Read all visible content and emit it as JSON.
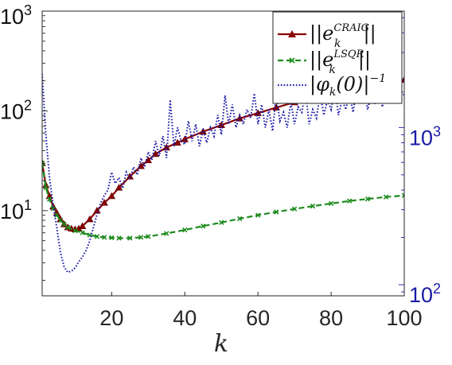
{
  "chart_data": {
    "type": "line",
    "title": "",
    "x": {
      "label": "k",
      "range": [
        1,
        100
      ],
      "ticks": [
        20,
        40,
        60,
        80,
        100
      ]
    },
    "y_left": {
      "scale": "log",
      "range": [
        1.4,
        1000
      ],
      "ticks": [
        {
          "value": 10,
          "mantissa": "10",
          "exp": "1"
        },
        {
          "value": 100,
          "mantissa": "10",
          "exp": "2"
        },
        {
          "value": 1000,
          "mantissa": "10",
          "exp": "3"
        }
      ]
    },
    "y_right": {
      "scale": "log",
      "range": [
        85,
        5500
      ],
      "color": "#1a1aa8",
      "ticks": [
        {
          "value": 100,
          "mantissa": "10",
          "exp": "2"
        },
        {
          "value": 1000,
          "mantissa": "10",
          "exp": "3"
        }
      ]
    },
    "grid": false,
    "legend_position": "top-right",
    "series": [
      {
        "id": "craig",
        "legend": {
          "prefix": "||e",
          "sub": "k",
          "sup": "CRAIG",
          "suffix": "||"
        },
        "axis": "left",
        "color": "#8b0000",
        "style": "solid",
        "marker": "triangle",
        "x": [
          1,
          2,
          3,
          4,
          5,
          6,
          7,
          8,
          9,
          10,
          11,
          12,
          14,
          16,
          18,
          20,
          22,
          25,
          28,
          30,
          32,
          35,
          38,
          40,
          45,
          50,
          55,
          60,
          65,
          70,
          75,
          80,
          85,
          90,
          95,
          100
        ],
        "y": [
          30,
          18,
          14,
          11,
          9.5,
          8.2,
          7.3,
          6.8,
          6.6,
          6.5,
          6.6,
          7.0,
          8.2,
          10,
          12,
          14,
          17,
          22,
          28,
          32,
          37,
          43,
          48,
          52,
          62,
          72,
          84,
          95,
          108,
          122,
          136,
          150,
          165,
          180,
          195,
          205
        ]
      },
      {
        "id": "lsqr",
        "legend": {
          "prefix": "||e",
          "sub": "k",
          "sup": "LSQR",
          "suffix": "||"
        },
        "axis": "left",
        "color": "#1e8c1e",
        "style": "dashed",
        "marker": "x",
        "x": [
          1,
          2,
          3,
          4,
          5,
          6,
          7,
          8,
          10,
          12,
          14,
          16,
          18,
          20,
          22,
          25,
          28,
          30,
          35,
          40,
          45,
          50,
          55,
          60,
          65,
          70,
          75,
          80,
          85,
          90,
          95,
          100
        ],
        "y": [
          30,
          17,
          13,
          10.5,
          9,
          8,
          7.3,
          6.8,
          6.3,
          6.0,
          5.7,
          5.5,
          5.4,
          5.35,
          5.3,
          5.3,
          5.4,
          5.5,
          5.9,
          6.4,
          7.0,
          7.6,
          8.3,
          9.0,
          9.7,
          10.4,
          11.1,
          11.8,
          12.5,
          13.1,
          13.7,
          14.2
        ]
      },
      {
        "id": "phi",
        "legend": {
          "text": "|φ",
          "sub": "k",
          "mid": "(0)|",
          "sup": "−1"
        },
        "axis": "right",
        "color": "#1a1aa8",
        "style": "dotted",
        "marker": "none",
        "x": [
          1,
          2,
          3,
          4,
          5,
          6,
          7,
          8,
          9,
          10,
          11,
          12,
          13,
          14,
          15,
          16,
          17,
          18,
          19,
          20,
          21,
          22,
          23,
          24,
          25,
          26,
          27,
          28,
          29,
          30,
          31,
          32,
          33,
          34,
          35,
          36,
          37,
          38,
          39,
          40,
          41,
          42,
          43,
          44,
          45,
          46,
          47,
          48,
          49,
          50,
          51,
          52,
          53,
          54,
          55,
          56,
          57,
          58,
          59,
          60,
          61,
          62,
          63,
          64,
          65,
          66,
          67,
          68,
          69,
          70,
          71,
          72,
          73,
          74,
          75,
          76,
          77,
          78,
          79,
          80,
          81,
          82,
          83,
          84,
          85,
          86,
          87,
          88,
          89,
          90,
          91,
          92,
          93,
          94,
          95,
          96,
          97,
          98,
          99,
          100
        ],
        "y": [
          2200,
          900,
          480,
          320,
          230,
          160,
          130,
          120,
          122,
          128,
          140,
          150,
          165,
          190,
          230,
          280,
          330,
          370,
          400,
          520,
          440,
          480,
          410,
          520,
          470,
          560,
          500,
          640,
          560,
          700,
          620,
          820,
          660,
          880,
          640,
          1500,
          760,
          1000,
          820,
          780,
          1100,
          820,
          1050,
          760,
          980,
          800,
          1000,
          880,
          1200,
          900,
          1600,
          1050,
          1400,
          1000,
          1200,
          1050,
          1300,
          1150,
          1650,
          1050,
          1400,
          1000,
          1300,
          950,
          1600,
          1100,
          1250,
          1000,
          1450,
          1050,
          1350,
          1250,
          1700,
          1050,
          1300,
          1150,
          1650,
          1200,
          1500,
          1300,
          1800,
          1200,
          1500,
          1300,
          1650,
          1250,
          1800,
          1400,
          1700,
          1300,
          1650,
          1400,
          1900,
          1350,
          1700,
          1450,
          1900,
          1500,
          1750,
          1600
        ]
      }
    ]
  }
}
